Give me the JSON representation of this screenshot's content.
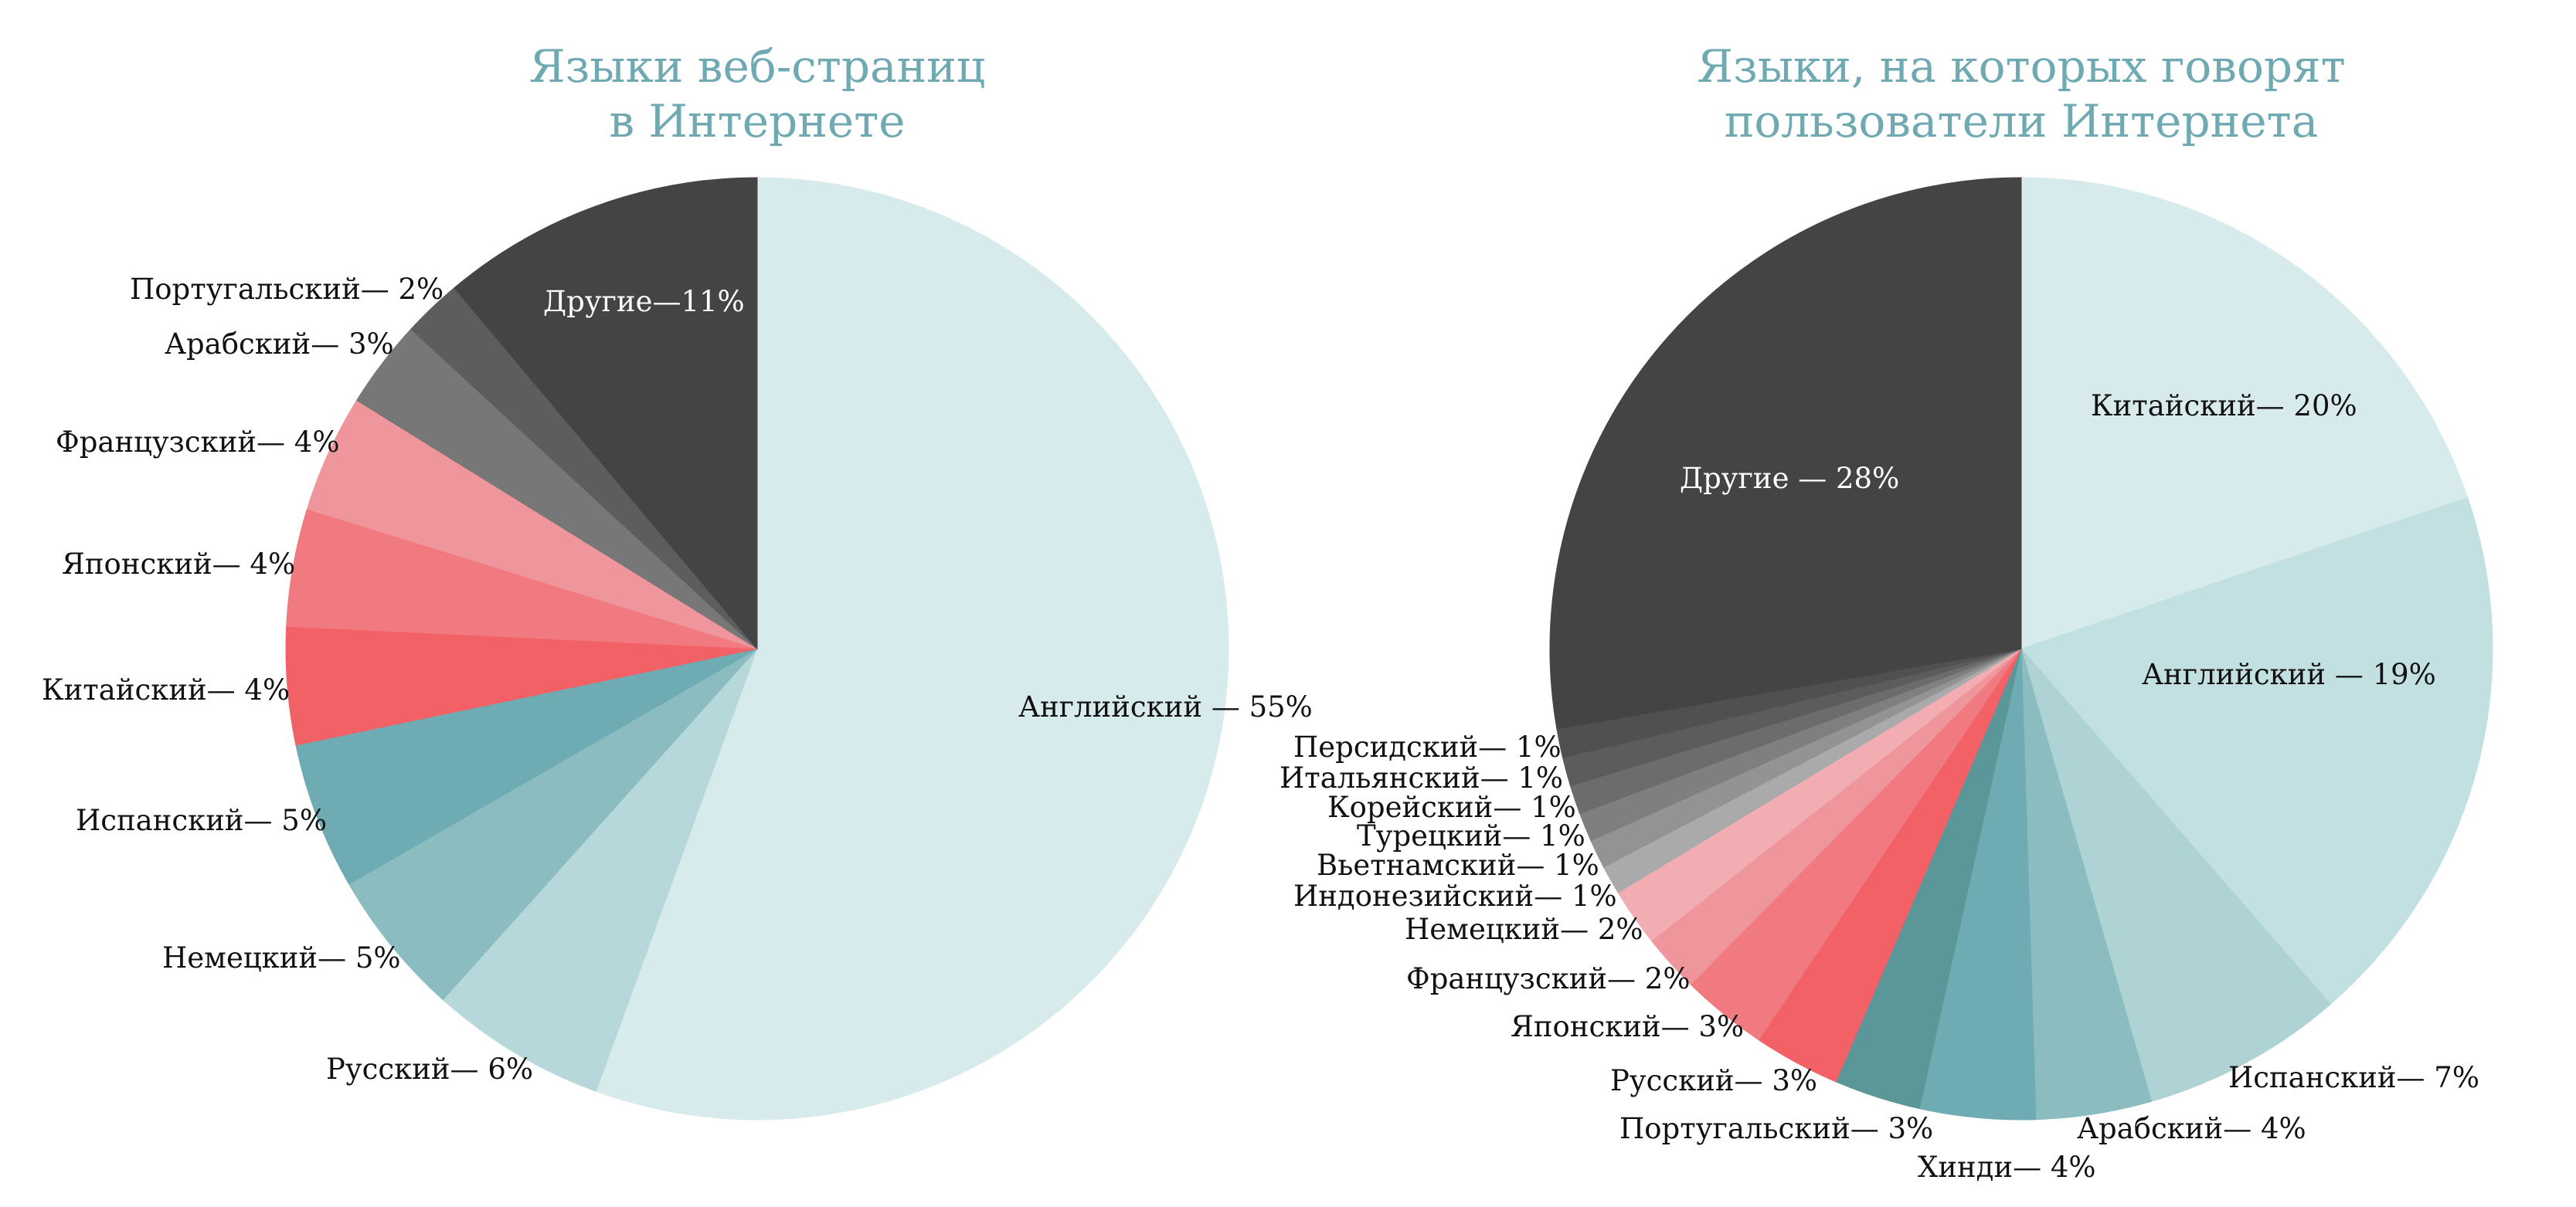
{
  "chart_data": [
    {
      "type": "pie",
      "title": [
        "Языки веб-страниц",
        "в Интернете"
      ],
      "slices": [
        {
          "label": "Английский — 55%",
          "value": 55,
          "color": "#d8ebec"
        },
        {
          "label": "Русский— 6%",
          "value": 6,
          "color": "#b7d8da"
        },
        {
          "label": "Немецкий— 5%",
          "value": 5,
          "color": "#8bbcc0"
        },
        {
          "label": "Испанский— 5%",
          "value": 5,
          "color": "#6fabb3"
        },
        {
          "label": "Китайский— 4%",
          "value": 4,
          "color": "#f26166"
        },
        {
          "label": "Японский— 4%",
          "value": 4,
          "color": "#f07a7f"
        },
        {
          "label": "Французский— 4%",
          "value": 4,
          "color": "#ef969c"
        },
        {
          "label": "Арабский— 3%",
          "value": 3,
          "color": "#777777"
        },
        {
          "label": "Португальский— 2%",
          "value": 2,
          "color": "#5d5d5d"
        },
        {
          "label": "Другие—11%",
          "value": 11,
          "color": "#444444"
        }
      ]
    },
    {
      "type": "pie",
      "title": [
        "Языки, на которых говорят",
        "пользователи Интернета"
      ],
      "slices": [
        {
          "label": "Китайский— 20%",
          "value": 20,
          "color": "#d8ebec"
        },
        {
          "label": "Английский — 19%",
          "value": 19,
          "color": "#c2e0e1"
        },
        {
          "label": "Испанский— 7%",
          "value": 7,
          "color": "#afd3d4"
        },
        {
          "label": "Арабский— 4%",
          "value": 4,
          "color": "#8bbcc0"
        },
        {
          "label": "Хинди— 4%",
          "value": 4,
          "color": "#6fabb3"
        },
        {
          "label": "Португальский— 3%",
          "value": 3,
          "color": "#5b9799"
        },
        {
          "label": "Русский— 3%",
          "value": 3,
          "color": "#f26166"
        },
        {
          "label": "Японский— 3%",
          "value": 3,
          "color": "#f07a7f"
        },
        {
          "label": "Французский— 2%",
          "value": 2,
          "color": "#ef969c"
        },
        {
          "label": "Немецкий— 2%",
          "value": 2,
          "color": "#f1adb2"
        },
        {
          "label": "Индонезийский— 1%",
          "value": 1,
          "color": "#aaaaaa"
        },
        {
          "label": "Вьетнамский— 1%",
          "value": 1,
          "color": "#939393"
        },
        {
          "label": "Турецкий— 1%",
          "value": 1,
          "color": "#7f7f7f"
        },
        {
          "label": "Корейский— 1%",
          "value": 1,
          "color": "#6c6c6c"
        },
        {
          "label": "Итальянский— 1%",
          "value": 1,
          "color": "#5c5c5c"
        },
        {
          "label": "Персидский— 1%",
          "value": 1,
          "color": "#505050"
        },
        {
          "label": "Другие — 28%",
          "value": 28,
          "color": "#444444"
        }
      ]
    }
  ]
}
